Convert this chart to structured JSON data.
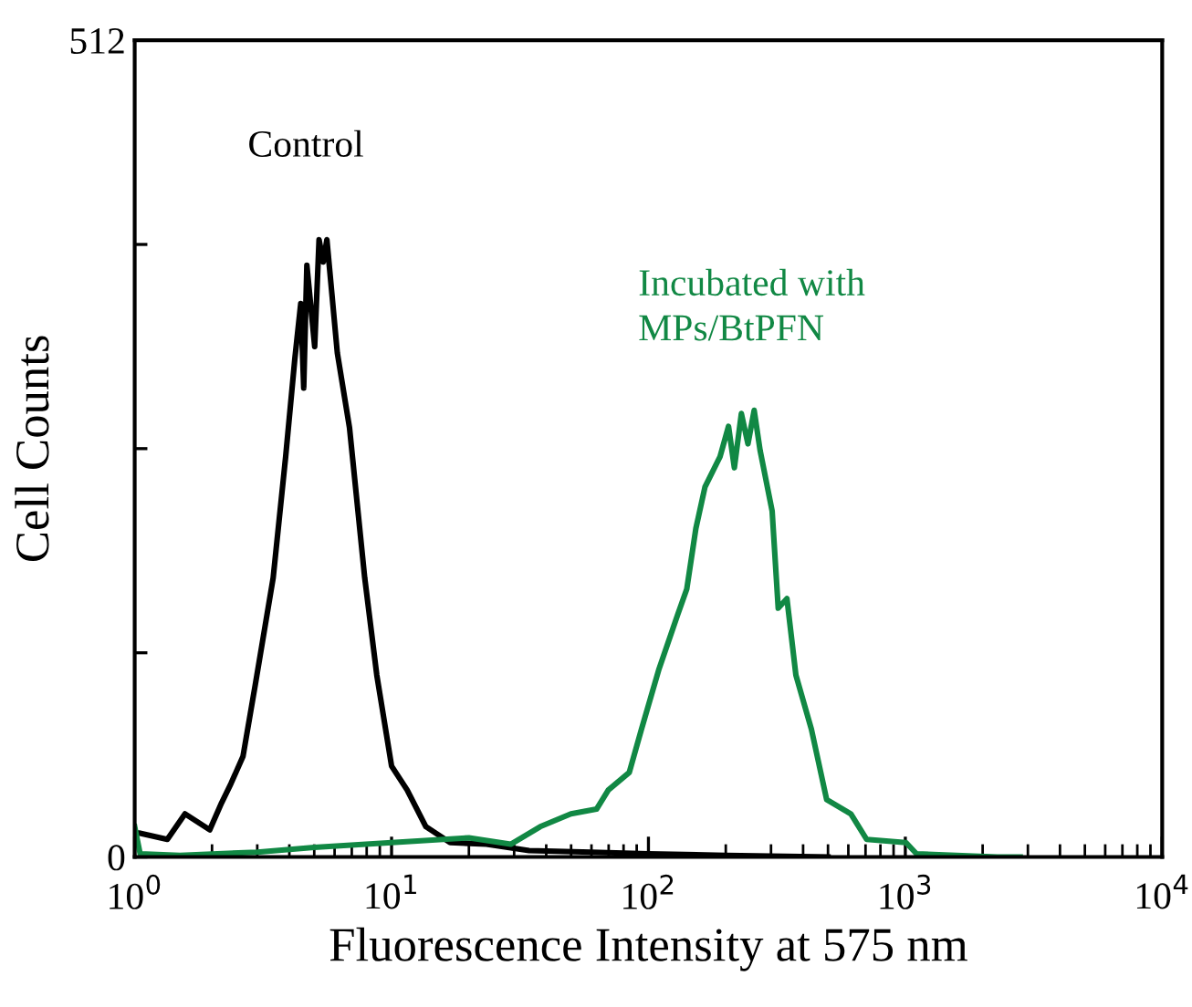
{
  "chart_data": {
    "type": "line",
    "xlabel": "Fluorescence Intensity at 575 nm",
    "ylabel": "Cell Counts",
    "log": "x",
    "xlim": [
      1,
      10000
    ],
    "xticks": [
      {
        "value": 1,
        "label": "10$^{0}$"
      },
      {
        "value": 10,
        "label": "10$^{1}$"
      },
      {
        "value": 100,
        "label": "10$^{2}$"
      },
      {
        "value": 1000,
        "label": "10$^{3}$"
      },
      {
        "value": 10000,
        "label": "10$^{4}$"
      }
    ],
    "ylim": [
      0,
      512
    ],
    "yticks": [
      0,
      {
        "value": 128,
        "label": null
      },
      {
        "value": 256,
        "label": null
      },
      {
        "value": 384,
        "label": null
      },
      512
    ],
    "grid": false,
    "legend": false,
    "marker": "none",
    "line_style": "solid",
    "series": [
      {
        "name": "Control",
        "color": "#000000",
        "x": [
          1.0,
          1.04,
          1.34,
          1.57,
          1.96,
          2.18,
          2.37,
          2.64,
          2.94,
          3.46,
          3.87,
          4.2,
          4.43,
          4.55,
          4.68,
          5.02,
          5.22,
          5.42,
          5.6,
          6.15,
          6.86,
          7.86,
          8.76,
          10.0,
          11.5,
          13.6,
          16.9,
          23.4,
          34.3,
          60,
          100,
          200,
          500
        ],
        "values": [
          15,
          15,
          11,
          27,
          17,
          34,
          46,
          63,
          107,
          175,
          251,
          312,
          347,
          294,
          371,
          320,
          387,
          373,
          387,
          316,
          269,
          175,
          114,
          57,
          42,
          19,
          9,
          8,
          4,
          3,
          2,
          1,
          0
        ]
      },
      {
        "name": "Incubated with\nMPs/BtPFN",
        "color": "#118844",
        "x": [
          1.0,
          1.05,
          1.5,
          3,
          5,
          10,
          20,
          29.1,
          37.9,
          49.9,
          62.8,
          69.8,
          84.2,
          93.9,
          110,
          130,
          141,
          153,
          166,
          190,
          205,
          216,
          230,
          244,
          258,
          272,
          303,
          320,
          346,
          375,
          431,
          494,
          614,
          707,
          1006,
          1105,
          2280,
          2800
        ],
        "values": [
          19,
          2,
          1,
          3,
          6,
          9,
          12,
          8,
          19,
          27,
          30,
          42,
          53,
          80,
          118,
          152,
          168,
          206,
          232,
          251,
          270,
          244,
          278,
          259,
          280,
          255,
          217,
          156,
          162,
          114,
          80,
          36,
          27,
          11,
          9,
          2,
          0,
          0
        ]
      }
    ]
  }
}
